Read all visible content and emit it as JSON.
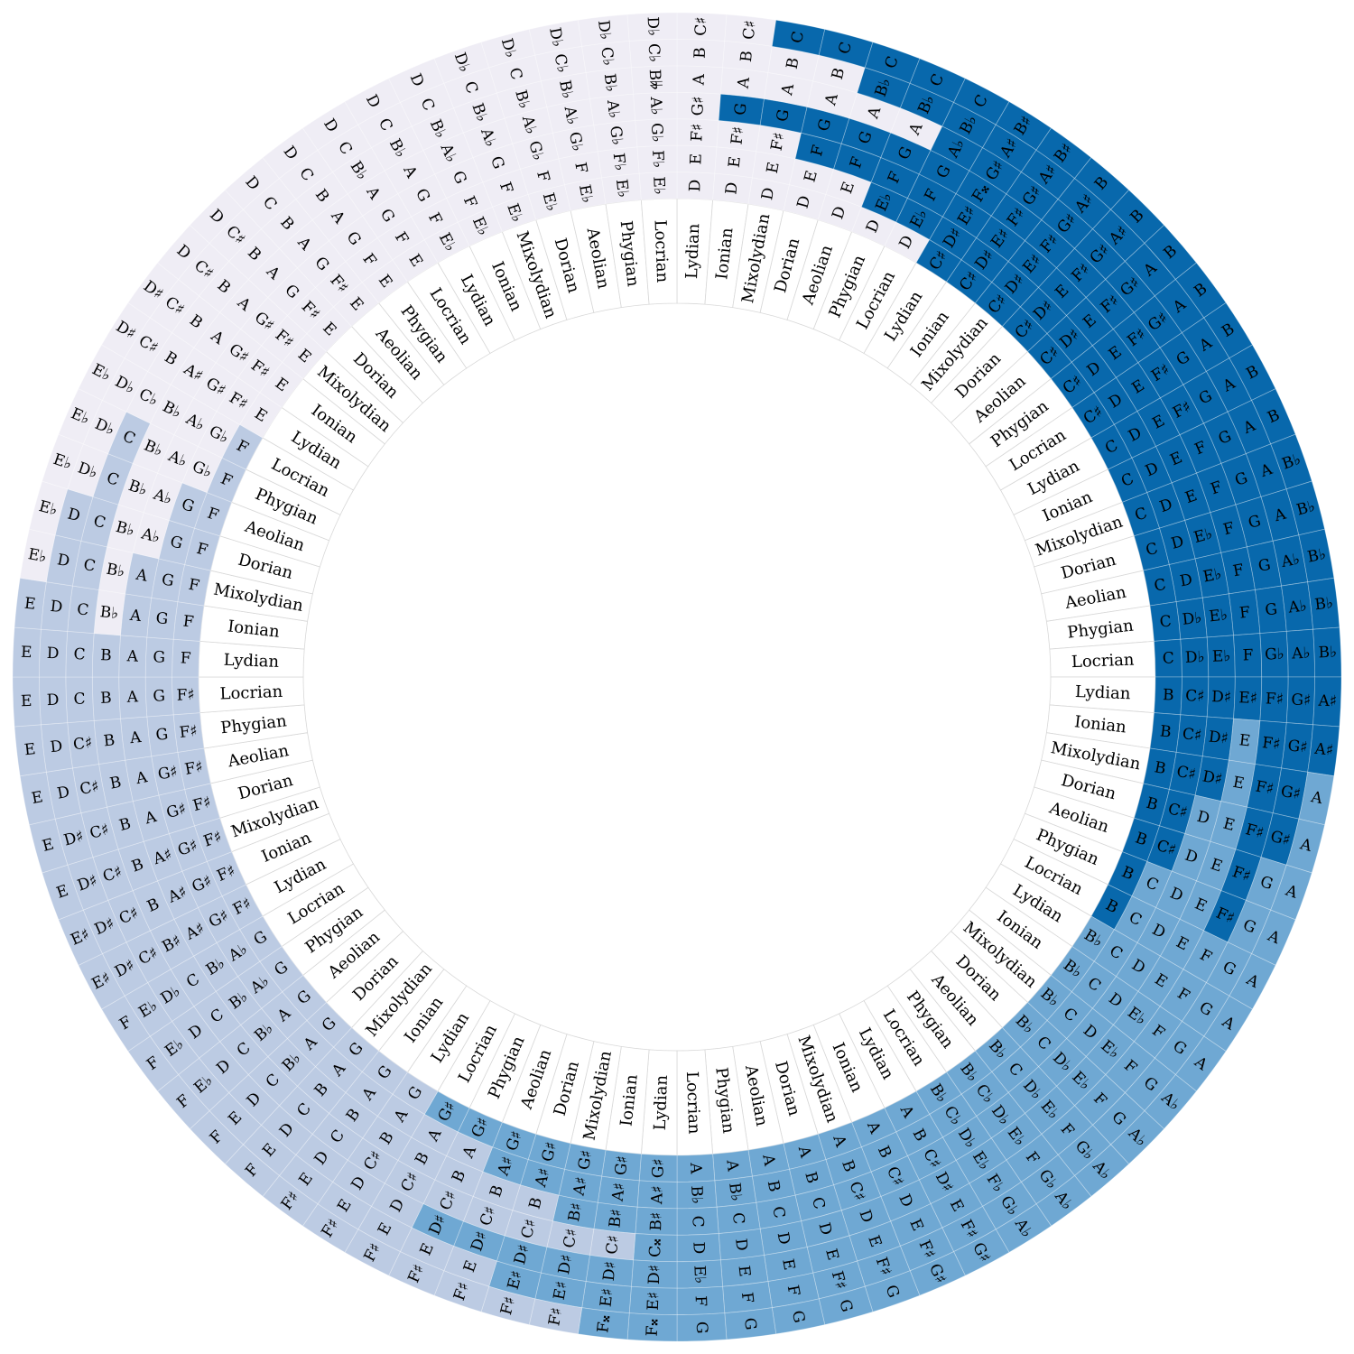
{
  "colors": {
    "mode_band": "#ffffff",
    "level_0": "#efedf5",
    "level_1": "#bccbe3",
    "level_2": "#6fa8d3",
    "level_3": "#0868ac"
  },
  "modes_cycle": [
    "Lydian",
    "Ionian",
    "Mixolydian",
    "Dorian",
    "Aeolian",
    "Phygian",
    "Locrian"
  ],
  "wedges": [
    {
      "root": "D",
      "rows": [
        {
          "mode": "Lydian",
          "notes": [
            "D",
            "E",
            "F♯",
            "G♯",
            "A",
            "B",
            "C♯"
          ]
        },
        {
          "mode": "Ionian",
          "notes": [
            "D",
            "E",
            "F♯",
            "G",
            "A",
            "B",
            "C♯"
          ]
        },
        {
          "mode": "Mixolydian",
          "notes": [
            "D",
            "E",
            "F♯",
            "G",
            "A",
            "B",
            "C"
          ]
        },
        {
          "mode": "Dorian",
          "notes": [
            "D",
            "E",
            "F",
            "G",
            "A",
            "B",
            "C"
          ]
        },
        {
          "mode": "Aeolian",
          "notes": [
            "D",
            "E",
            "F",
            "G",
            "A",
            "B♭",
            "C"
          ]
        },
        {
          "mode": "Phygian",
          "notes": [
            "D",
            "E♭",
            "F",
            "G",
            "A",
            "B♭",
            "C"
          ]
        },
        {
          "mode": "Locrian",
          "notes": [
            "D",
            "E♭",
            "F",
            "G",
            "A♭",
            "B♭",
            "C"
          ]
        }
      ]
    },
    {
      "root": "C♯",
      "rows": [
        {
          "mode": "Lydian",
          "notes": [
            "C♯",
            "D♯",
            "E♯",
            "F𝄪",
            "G♯",
            "A♯",
            "B♯"
          ]
        },
        {
          "mode": "Ionian",
          "notes": [
            "C♯",
            "D♯",
            "E♯",
            "F♯",
            "G♯",
            "A♯",
            "B♯"
          ]
        },
        {
          "mode": "Mixolydian",
          "notes": [
            "C♯",
            "D♯",
            "E♯",
            "F♯",
            "G♯",
            "A♯",
            "B"
          ]
        },
        {
          "mode": "Dorian",
          "notes": [
            "C♯",
            "D♯",
            "E",
            "F♯",
            "G♯",
            "A♯",
            "B"
          ]
        },
        {
          "mode": "Aeolian",
          "notes": [
            "C♯",
            "D♯",
            "E",
            "F♯",
            "G♯",
            "A",
            "B"
          ]
        },
        {
          "mode": "Phygian",
          "notes": [
            "C♯",
            "D",
            "E",
            "F♯",
            "G♯",
            "A",
            "B"
          ]
        },
        {
          "mode": "Locrian",
          "notes": [
            "C♯",
            "D",
            "E",
            "F♯",
            "G",
            "A",
            "B"
          ]
        }
      ]
    },
    {
      "root": "C",
      "rows": [
        {
          "mode": "Lydian",
          "notes": [
            "C",
            "D",
            "E",
            "F♯",
            "G",
            "A",
            "B"
          ]
        },
        {
          "mode": "Ionian",
          "notes": [
            "C",
            "D",
            "E",
            "F",
            "G",
            "A",
            "B"
          ]
        },
        {
          "mode": "Mixolydian",
          "notes": [
            "C",
            "D",
            "E",
            "F",
            "G",
            "A",
            "B♭"
          ]
        },
        {
          "mode": "Dorian",
          "notes": [
            "C",
            "D",
            "E♭",
            "F",
            "G",
            "A",
            "B♭"
          ]
        },
        {
          "mode": "Aeolian",
          "notes": [
            "C",
            "D",
            "E♭",
            "F",
            "G",
            "A♭",
            "B♭"
          ]
        },
        {
          "mode": "Phygian",
          "notes": [
            "C",
            "D♭",
            "E♭",
            "F",
            "G",
            "A♭",
            "B♭"
          ]
        },
        {
          "mode": "Locrian",
          "notes": [
            "C",
            "D♭",
            "E♭",
            "F",
            "G♭",
            "A♭",
            "B♭"
          ]
        }
      ]
    },
    {
      "root": "B",
      "rows": [
        {
          "mode": "Lydian",
          "notes": [
            "B",
            "C♯",
            "D♯",
            "E♯",
            "F♯",
            "G♯",
            "A♯"
          ]
        },
        {
          "mode": "Ionian",
          "notes": [
            "B",
            "C♯",
            "D♯",
            "E",
            "F♯",
            "G♯",
            "A♯"
          ]
        },
        {
          "mode": "Mixolydian",
          "notes": [
            "B",
            "C♯",
            "D♯",
            "E",
            "F♯",
            "G♯",
            "A"
          ]
        },
        {
          "mode": "Dorian",
          "notes": [
            "B",
            "C♯",
            "D",
            "E",
            "F♯",
            "G♯",
            "A"
          ]
        },
        {
          "mode": "Aeolian",
          "notes": [
            "B",
            "C♯",
            "D",
            "E",
            "F♯",
            "G",
            "A"
          ]
        },
        {
          "mode": "Phygian",
          "notes": [
            "B",
            "C",
            "D",
            "E",
            "F♯",
            "G",
            "A"
          ]
        },
        {
          "mode": "Locrian",
          "notes": [
            "B",
            "C",
            "D",
            "E",
            "F",
            "G",
            "A"
          ]
        }
      ]
    },
    {
      "root": "B♭",
      "rows": [
        {
          "mode": "Lydian",
          "notes": [
            "B♭",
            "C",
            "D",
            "E",
            "F",
            "G",
            "A"
          ]
        },
        {
          "mode": "Ionian",
          "notes": [
            "B♭",
            "C",
            "D",
            "E♭",
            "F",
            "G",
            "A"
          ]
        },
        {
          "mode": "Mixolydian",
          "notes": [
            "B♭",
            "C",
            "D",
            "E♭",
            "F",
            "G",
            "A♭"
          ]
        },
        {
          "mode": "Dorian",
          "notes": [
            "B♭",
            "C",
            "D♭",
            "E♭",
            "F",
            "G",
            "A♭"
          ]
        },
        {
          "mode": "Aeolian",
          "notes": [
            "B♭",
            "C",
            "D♭",
            "E♭",
            "F",
            "G♭",
            "A♭"
          ]
        },
        {
          "mode": "Phygian",
          "notes": [
            "B♭",
            "C♭",
            "D♭",
            "E♭",
            "F",
            "G♭",
            "A♭"
          ]
        },
        {
          "mode": "Locrian",
          "notes": [
            "B♭",
            "C♭",
            "D♭",
            "E♭",
            "F♭",
            "G♭",
            "A♭"
          ]
        }
      ]
    },
    {
      "root": "A",
      "rows": [
        {
          "mode": "Lydian",
          "notes": [
            "A",
            "B",
            "C♯",
            "D♯",
            "E",
            "F♯",
            "G♯"
          ]
        },
        {
          "mode": "Ionian",
          "notes": [
            "A",
            "B",
            "C♯",
            "D",
            "E",
            "F♯",
            "G♯"
          ]
        },
        {
          "mode": "Mixolydian",
          "notes": [
            "A",
            "B",
            "C♯",
            "D",
            "E",
            "F♯",
            "G"
          ]
        },
        {
          "mode": "Dorian",
          "notes": [
            "A",
            "B",
            "C",
            "D",
            "E",
            "F♯",
            "G"
          ]
        },
        {
          "mode": "Aeolian",
          "notes": [
            "A",
            "B",
            "C",
            "D",
            "E",
            "F",
            "G"
          ]
        },
        {
          "mode": "Phygian",
          "notes": [
            "A",
            "B♭",
            "C",
            "D",
            "E",
            "F",
            "G"
          ]
        },
        {
          "mode": "Locrian",
          "notes": [
            "A",
            "B♭",
            "C",
            "D",
            "E♭",
            "F",
            "G"
          ]
        }
      ]
    },
    {
      "root": "G♯",
      "rows": [
        {
          "mode": "Lydian",
          "notes": [
            "G♯",
            "A♯",
            "B♯",
            "C𝄪",
            "D♯",
            "E♯",
            "F𝄪"
          ]
        },
        {
          "mode": "Ionian",
          "notes": [
            "G♯",
            "A♯",
            "B♯",
            "C♯",
            "D♯",
            "E♯",
            "F𝄪"
          ]
        },
        {
          "mode": "Mixolydian",
          "notes": [
            "G♯",
            "A♯",
            "B♯",
            "C♯",
            "D♯",
            "E♯",
            "F♯"
          ]
        },
        {
          "mode": "Dorian",
          "notes": [
            "G♯",
            "A♯",
            "B",
            "C♯",
            "D♯",
            "E♯",
            "F♯"
          ]
        },
        {
          "mode": "Aeolian",
          "notes": [
            "G♯",
            "A♯",
            "B",
            "C♯",
            "D♯",
            "E",
            "F♯"
          ]
        },
        {
          "mode": "Phygian",
          "notes": [
            "G♯",
            "A",
            "B",
            "C♯",
            "D♯",
            "E",
            "F♯"
          ]
        },
        {
          "mode": "Locrian",
          "notes": [
            "G♯",
            "A",
            "B",
            "C♯",
            "D",
            "E",
            "F♯"
          ]
        }
      ]
    },
    {
      "root": "G",
      "rows": [
        {
          "mode": "Lydian",
          "notes": [
            "G",
            "A",
            "B",
            "C♯",
            "D",
            "E",
            "F♯"
          ]
        },
        {
          "mode": "Ionian",
          "notes": [
            "G",
            "A",
            "B",
            "C",
            "D",
            "E",
            "F♯"
          ]
        },
        {
          "mode": "Mixolydian",
          "notes": [
            "G",
            "A",
            "B",
            "C",
            "D",
            "E",
            "F"
          ]
        },
        {
          "mode": "Dorian",
          "notes": [
            "G",
            "A",
            "B♭",
            "C",
            "D",
            "E",
            "F"
          ]
        },
        {
          "mode": "Aeolian",
          "notes": [
            "G",
            "A",
            "B♭",
            "C",
            "D",
            "E♭",
            "F"
          ]
        },
        {
          "mode": "Phygian",
          "notes": [
            "G",
            "A♭",
            "B♭",
            "C",
            "D",
            "E♭",
            "F"
          ]
        },
        {
          "mode": "Locrian",
          "notes": [
            "G",
            "A♭",
            "B♭",
            "C",
            "D♭",
            "E♭",
            "F"
          ]
        }
      ]
    },
    {
      "root": "F♯",
      "rows": [
        {
          "mode": "Lydian",
          "notes": [
            "F♯",
            "G♯",
            "A♯",
            "B♯",
            "C♯",
            "D♯",
            "E♯"
          ]
        },
        {
          "mode": "Ionian",
          "notes": [
            "F♯",
            "G♯",
            "A♯",
            "B",
            "C♯",
            "D♯",
            "E♯"
          ]
        },
        {
          "mode": "Mixolydian",
          "notes": [
            "F♯",
            "G♯",
            "A♯",
            "B",
            "C♯",
            "D♯",
            "E"
          ]
        },
        {
          "mode": "Dorian",
          "notes": [
            "F♯",
            "G♯",
            "A",
            "B",
            "C♯",
            "D♯",
            "E"
          ]
        },
        {
          "mode": "Aeolian",
          "notes": [
            "F♯",
            "G♯",
            "A",
            "B",
            "C♯",
            "D",
            "E"
          ]
        },
        {
          "mode": "Phygian",
          "notes": [
            "F♯",
            "G",
            "A",
            "B",
            "C♯",
            "D",
            "E"
          ]
        },
        {
          "mode": "Locrian",
          "notes": [
            "F♯",
            "G",
            "A",
            "B",
            "C",
            "D",
            "E"
          ]
        }
      ]
    },
    {
      "root": "F",
      "rows": [
        {
          "mode": "Lydian",
          "notes": [
            "F",
            "G",
            "A",
            "B",
            "C",
            "D",
            "E"
          ]
        },
        {
          "mode": "Ionian",
          "notes": [
            "F",
            "G",
            "A",
            "B♭",
            "C",
            "D",
            "E"
          ]
        },
        {
          "mode": "Mixolydian",
          "notes": [
            "F",
            "G",
            "A",
            "B♭",
            "C",
            "D",
            "E♭"
          ]
        },
        {
          "mode": "Dorian",
          "notes": [
            "F",
            "G",
            "A♭",
            "B♭",
            "C",
            "D",
            "E♭"
          ]
        },
        {
          "mode": "Aeolian",
          "notes": [
            "F",
            "G",
            "A♭",
            "B♭",
            "C",
            "D♭",
            "E♭"
          ]
        },
        {
          "mode": "Phygian",
          "notes": [
            "F",
            "G♭",
            "A♭",
            "B♭",
            "C",
            "D♭",
            "E♭"
          ]
        },
        {
          "mode": "Locrian",
          "notes": [
            "F",
            "G♭",
            "A♭",
            "B♭",
            "C♭",
            "D♭",
            "E♭"
          ]
        }
      ]
    },
    {
      "root": "E",
      "rows": [
        {
          "mode": "Lydian",
          "notes": [
            "E",
            "F♯",
            "G♯",
            "A♯",
            "B",
            "C♯",
            "D♯"
          ]
        },
        {
          "mode": "Ionian",
          "notes": [
            "E",
            "F♯",
            "G♯",
            "A",
            "B",
            "C♯",
            "D♯"
          ]
        },
        {
          "mode": "Mixolydian",
          "notes": [
            "E",
            "F♯",
            "G♯",
            "A",
            "B",
            "C♯",
            "D"
          ]
        },
        {
          "mode": "Dorian",
          "notes": [
            "E",
            "F♯",
            "G",
            "A",
            "B",
            "C♯",
            "D"
          ]
        },
        {
          "mode": "Aeolian",
          "notes": [
            "E",
            "F♯",
            "G",
            "A",
            "B",
            "C",
            "D"
          ]
        },
        {
          "mode": "Phygian",
          "notes": [
            "E",
            "F",
            "G",
            "A",
            "B",
            "C",
            "D"
          ]
        },
        {
          "mode": "Locrian",
          "notes": [
            "E",
            "F",
            "G",
            "A",
            "B♭",
            "C",
            "D"
          ]
        }
      ]
    },
    {
      "root": "E♭",
      "rows": [
        {
          "mode": "Lydian",
          "notes": [
            "E♭",
            "F",
            "G",
            "A",
            "B♭",
            "C",
            "D"
          ]
        },
        {
          "mode": "Ionian",
          "notes": [
            "E♭",
            "F",
            "G",
            "A♭",
            "B♭",
            "C",
            "D"
          ]
        },
        {
          "mode": "Mixolydian",
          "notes": [
            "E♭",
            "F",
            "G",
            "A♭",
            "B♭",
            "C",
            "D♭"
          ]
        },
        {
          "mode": "Dorian",
          "notes": [
            "E♭",
            "F",
            "G♭",
            "A♭",
            "B♭",
            "C",
            "D♭"
          ]
        },
        {
          "mode": "Aeolian",
          "notes": [
            "E♭",
            "F",
            "G♭",
            "A♭",
            "B♭",
            "C♭",
            "D♭"
          ]
        },
        {
          "mode": "Phygian",
          "notes": [
            "E♭",
            "F♭",
            "G♭",
            "A♭",
            "B♭",
            "C♭",
            "D♭"
          ]
        },
        {
          "mode": "Locrian",
          "notes": [
            "E♭",
            "F♭",
            "G♭",
            "A♭",
            "B𝄫",
            "C♭",
            "D♭"
          ]
        }
      ]
    }
  ]
}
